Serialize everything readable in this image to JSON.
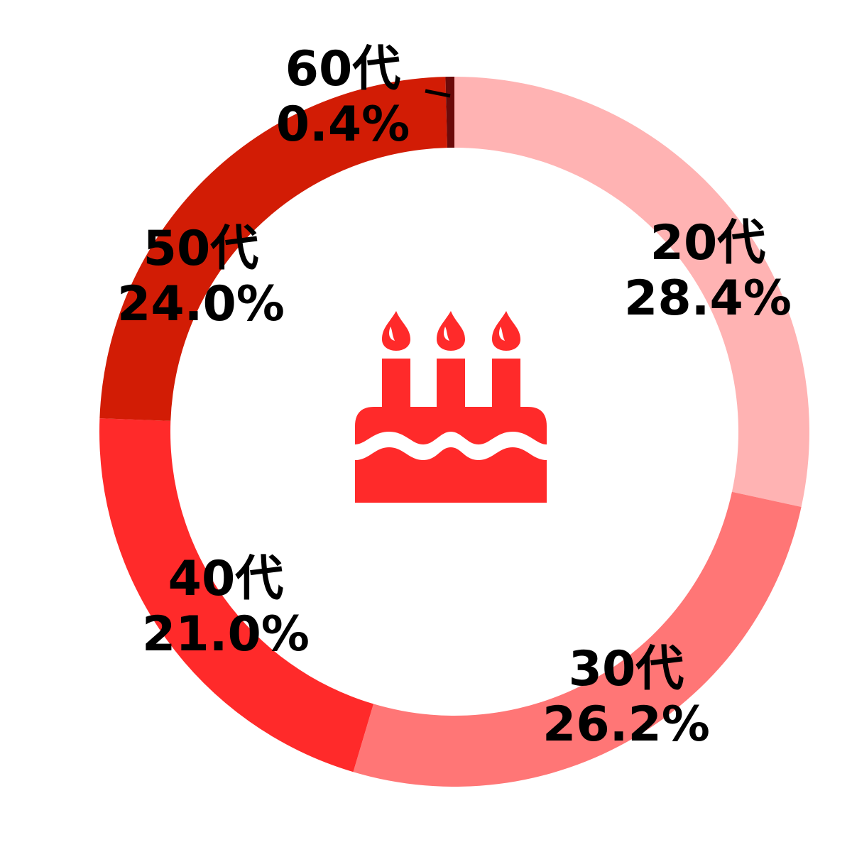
{
  "chart_data": {
    "type": "pie",
    "donut": true,
    "start": "top, clockwise",
    "categories": [
      "20代",
      "30代",
      "40代",
      "50代",
      "60代"
    ],
    "values": [
      28.4,
      26.2,
      21.0,
      24.0,
      0.4
    ],
    "labels": [
      "28.4%",
      "26.2%",
      "21.0%",
      "24.0%",
      "0.4%"
    ],
    "colors": [
      "#FFB3B3",
      "#FF7676",
      "#FF2A2A",
      "#D21C05",
      "#6B0A0A"
    ],
    "center_icon": "birthday-cake-icon",
    "center_icon_color": "#FF2A2A",
    "legend": "none"
  }
}
